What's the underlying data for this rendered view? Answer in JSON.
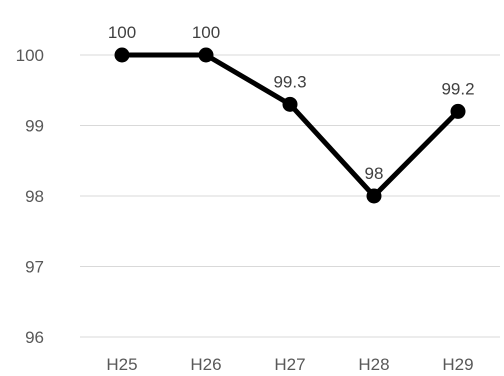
{
  "chart_data": {
    "type": "line",
    "title": "",
    "xlabel": "",
    "ylabel": "",
    "categories": [
      "H25",
      "H26",
      "H27",
      "H28",
      "H29"
    ],
    "series": [
      {
        "values": [
          100,
          100,
          99.3,
          98,
          99.2
        ],
        "data_labels": [
          "100",
          "100",
          "99.3",
          "98",
          "99.2"
        ]
      }
    ],
    "ylim": [
      96,
      100
    ],
    "yticks": [
      "96",
      "97",
      "98",
      "99",
      "100"
    ],
    "grid": true,
    "legend": "none",
    "colors": {
      "series": "#000000",
      "grid": "#d9d9d9",
      "text": "#595959"
    }
  }
}
